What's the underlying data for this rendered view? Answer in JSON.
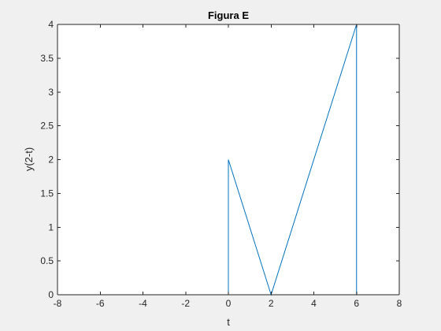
{
  "chart_data": {
    "type": "line",
    "title": "Figura E",
    "xlabel": "t",
    "ylabel": "y(2-t)",
    "xlim": [
      -8,
      8
    ],
    "ylim": [
      0,
      4
    ],
    "xticks": [
      -8,
      -6,
      -4,
      -2,
      0,
      2,
      4,
      6,
      8
    ],
    "yticks": [
      0,
      0.5,
      1,
      1.5,
      2,
      2.5,
      3,
      3.5,
      4
    ],
    "xtick_labels": [
      "-8",
      "-6",
      "-4",
      "-2",
      "0",
      "2",
      "4",
      "6",
      "8"
    ],
    "ytick_labels": [
      "0",
      "0.5",
      "1",
      "1.5",
      "2",
      "2.5",
      "3",
      "3.5",
      "4"
    ],
    "grid": false,
    "box": true,
    "series": [
      {
        "color": "#0072bd",
        "x": [
          -7,
          0,
          0,
          2,
          6,
          6,
          7
        ],
        "y": [
          0,
          0,
          2,
          0,
          4,
          0,
          0
        ]
      }
    ]
  }
}
